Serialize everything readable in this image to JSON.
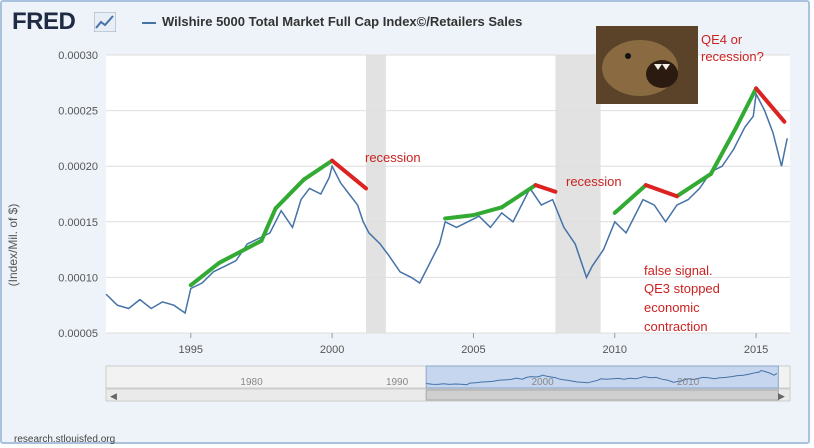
{
  "header": {
    "logo_text": "FRED",
    "legend_label": "Wilshire 5000 Total Market Full Cap Index©/Retailers Sales",
    "series_color": "#4572a7",
    "logo_icon": "line-chart-icon"
  },
  "footer": {
    "source_text": "research.stlouisfed.org"
  },
  "annotations": {
    "recession_1": "recession",
    "recession_2": "recession",
    "qe4_line1": "QE4 or",
    "qe4_line2": "recession?",
    "false_1": "false signal.",
    "false_2": "QE3 stopped",
    "false_3": "economic",
    "false_4": "contraction",
    "annotation_color": "#cc2222",
    "up_trend_color": "#33aa33",
    "down_trend_color": "#dd2222",
    "image_icon": "roaring-bear-photo-icon"
  },
  "navigator": {
    "ticks": [
      "1980",
      "1990",
      "2000",
      "2010"
    ],
    "scroll_icon": "scroll-grip-icon"
  },
  "chart_data": {
    "type": "line",
    "ylabel": "(Index/Mil. of $)",
    "xlim": [
      1992,
      2016.2
    ],
    "ylim": [
      5e-05,
      0.0003
    ],
    "yticks": [
      "0.00005",
      "0.00010",
      "0.00015",
      "0.00020",
      "0.00025",
      "0.00030"
    ],
    "xticks": [
      "1995",
      "2000",
      "2005",
      "2010",
      "2015"
    ],
    "grid": true,
    "recessions": [
      [
        2001.2,
        2001.9
      ],
      [
        2007.9,
        2009.5
      ]
    ],
    "series": [
      {
        "x": [
          1992.0,
          1992.4,
          1992.8,
          1993.2,
          1993.6,
          1994.0,
          1994.4,
          1994.8,
          1995.0,
          1995.4,
          1995.8,
          1996.2,
          1996.6,
          1997.0,
          1997.4,
          1997.8,
          1998.2,
          1998.6,
          1998.9,
          1999.2,
          1999.6,
          1999.9,
          2000.0,
          2000.3,
          2000.6,
          2000.9,
          2001.1,
          2001.3,
          2001.7,
          2002.0,
          2002.4,
          2002.8,
          2003.1,
          2003.4,
          2003.8,
          2004.0,
          2004.4,
          2004.8,
          2005.2,
          2005.6,
          2006.0,
          2006.4,
          2006.8,
          2007.0,
          2007.4,
          2007.8,
          2008.2,
          2008.6,
          2009.0,
          2009.2,
          2009.6,
          2010.0,
          2010.4,
          2010.8,
          2011.0,
          2011.4,
          2011.8,
          2012.2,
          2012.6,
          2013.0,
          2013.4,
          2013.8,
          2014.2,
          2014.6,
          2014.9,
          2015.0,
          2015.3,
          2015.6,
          2015.9,
          2016.1
        ],
        "y": [
          8.5e-05,
          7.5e-05,
          7.2e-05,
          8e-05,
          7.2e-05,
          7.8e-05,
          7.5e-05,
          6.8e-05,
          9e-05,
          9.5e-05,
          0.000105,
          0.00011,
          0.000115,
          0.00013,
          0.000135,
          0.00014,
          0.00016,
          0.000145,
          0.00017,
          0.00018,
          0.000175,
          0.00019,
          0.0002,
          0.000185,
          0.000175,
          0.000165,
          0.00015,
          0.00014,
          0.00013,
          0.00012,
          0.000105,
          0.0001,
          9.5e-05,
          0.00011,
          0.00013,
          0.00015,
          0.000145,
          0.00015,
          0.000155,
          0.000145,
          0.000158,
          0.00015,
          0.00017,
          0.00018,
          0.000165,
          0.00017,
          0.000145,
          0.00013,
          0.0001,
          0.00011,
          0.000125,
          0.00015,
          0.00014,
          0.00016,
          0.00017,
          0.000165,
          0.00015,
          0.000165,
          0.00017,
          0.00018,
          0.000195,
          0.0002,
          0.000215,
          0.000235,
          0.000245,
          0.000265,
          0.00025,
          0.00023,
          0.0002,
          0.000225
        ]
      }
    ],
    "trend_up": [
      [
        [
          1995.0,
          9.3e-05
        ],
        [
          1996.0,
          0.000113
        ]
      ],
      [
        [
          1996.0,
          0.000113
        ],
        [
          1997.5,
          0.000133
        ]
      ],
      [
        [
          1997.5,
          0.000133
        ],
        [
          1998.0,
          0.000162
        ]
      ],
      [
        [
          1998.0,
          0.000162
        ],
        [
          1999.0,
          0.000188
        ]
      ],
      [
        [
          1999.0,
          0.000188
        ],
        [
          2000.0,
          0.000205
        ]
      ],
      [
        [
          2004.0,
          0.000153
        ],
        [
          2005.0,
          0.000156
        ]
      ],
      [
        [
          2005.0,
          0.000156
        ],
        [
          2006.0,
          0.000163
        ]
      ],
      [
        [
          2006.0,
          0.000163
        ],
        [
          2007.2,
          0.000183
        ]
      ],
      [
        [
          2010.0,
          0.000158
        ],
        [
          2011.1,
          0.000183
        ]
      ],
      [
        [
          2012.2,
          0.000173
        ],
        [
          2013.4,
          0.000193
        ]
      ],
      [
        [
          2013.4,
          0.000193
        ],
        [
          2014.3,
          0.000235
        ]
      ],
      [
        [
          2014.3,
          0.000235
        ],
        [
          2015.0,
          0.00027
        ]
      ]
    ],
    "trend_down": [
      [
        [
          2000.0,
          0.000205
        ],
        [
          2001.2,
          0.00018
        ]
      ],
      [
        [
          2007.2,
          0.000183
        ],
        [
          2007.9,
          0.000177
        ]
      ],
      [
        [
          2011.1,
          0.000183
        ],
        [
          2012.2,
          0.000173
        ]
      ],
      [
        [
          2015.0,
          0.00027
        ],
        [
          2016.0,
          0.00024
        ]
      ]
    ],
    "navigator": {
      "xlim": [
        1970,
        2017
      ],
      "window": [
        1992,
        2016.2
      ]
    }
  }
}
